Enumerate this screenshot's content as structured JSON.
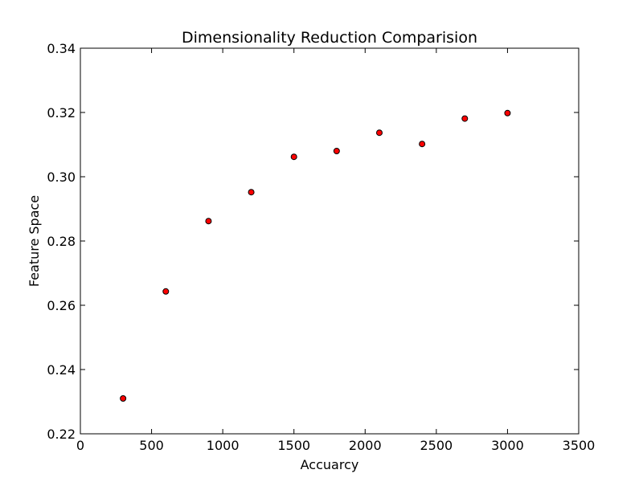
{
  "chart_data": {
    "type": "scatter",
    "title": "Dimensionality Reduction Comparision",
    "xlabel": "Accuarcy",
    "ylabel": "Feature Space",
    "xlim": [
      0,
      3500
    ],
    "ylim": [
      0.22,
      0.34
    ],
    "xticks": [
      "0",
      "500",
      "1000",
      "1500",
      "2000",
      "2500",
      "3000",
      "3500"
    ],
    "yticks": [
      "0.22",
      "0.24",
      "0.26",
      "0.28",
      "0.30",
      "0.32",
      "0.34"
    ],
    "grid": false,
    "series": [
      {
        "name": "points",
        "color": "#ff0000",
        "edge_color": "#000000",
        "x": [
          300,
          600,
          900,
          1200,
          1500,
          1800,
          2100,
          2400,
          2700,
          3000
        ],
        "y": [
          0.231,
          0.2643,
          0.2862,
          0.2952,
          0.3062,
          0.308,
          0.3137,
          0.3102,
          0.3181,
          0.3198
        ]
      }
    ]
  }
}
